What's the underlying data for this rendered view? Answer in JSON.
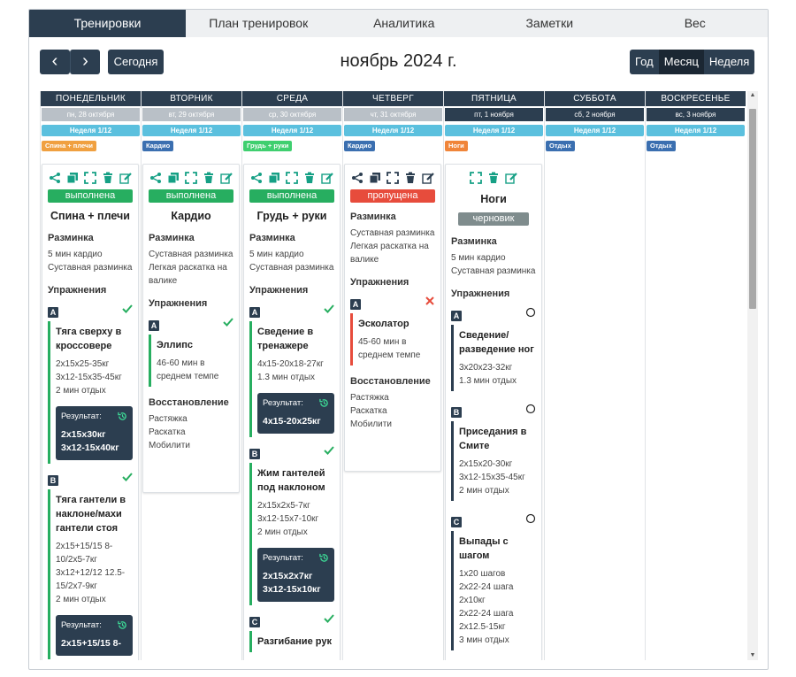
{
  "tabs": [
    "Тренировки",
    "План тренировок",
    "Аналитика",
    "Заметки",
    "Вес"
  ],
  "toolbar": {
    "prev": "‹",
    "next": "›",
    "today": "Сегодня",
    "title": "ноябрь 2024 г.",
    "views": [
      "Год",
      "Месяц",
      "Неделя"
    ],
    "selected_view": "Месяц"
  },
  "days": [
    {
      "name": "ПОНЕДЕЛЬНИК",
      "date": "пн, 28 октября",
      "week": "Неделя 1/12",
      "tag": "Спина + плечи",
      "tag_color": "#f0a040"
    },
    {
      "name": "ВТОРНИК",
      "date": "вт, 29 октября",
      "week": "Неделя 1/12",
      "tag": "Кардио",
      "tag_color": "#3b6fb0"
    },
    {
      "name": "СРЕДА",
      "date": "ср, 30 октября",
      "week": "Неделя 1/12",
      "tag": "Грудь + руки",
      "tag_color": "#3fcf6f"
    },
    {
      "name": "ЧЕТВЕРГ",
      "date": "чт, 31 октября",
      "week": "Неделя 1/12",
      "tag": "Кардио",
      "tag_color": "#3b6fb0"
    },
    {
      "name": "ПЯТНИЦА",
      "date": "пт, 1 ноября",
      "week": "Неделя 1/12",
      "tag": "Ноги",
      "tag_color": "#f0853a"
    },
    {
      "name": "СУББОТА",
      "date": "сб, 2 ноября",
      "week": "Неделя 1/12",
      "tag": "Отдых",
      "tag_color": "#3b6fb0"
    },
    {
      "name": "ВОСКРЕСЕНЬЕ",
      "date": "вс, 3 ноября",
      "week": "Неделя 1/12",
      "tag": "Отдых",
      "tag_color": "#3b6fb0"
    }
  ],
  "labels": {
    "warmup": "Разминка",
    "exercises": "Упражнения",
    "recovery": "Восстановление",
    "result": "Результат:"
  },
  "workouts": {
    "mon": {
      "status": "выполнена",
      "name": "Спина + плечи",
      "warmup": [
        "5 мин кардио",
        "Суставная разминка"
      ],
      "ex": [
        {
          "letter": "A",
          "name": "Тяга сверху в кроссовере",
          "details": [
            "2x15x25-35кг",
            "3x12-15x35-45кг",
            "2 мин отдых"
          ],
          "result": [
            "2x15x30кг",
            "3x12-15x40кг"
          ]
        },
        {
          "letter": "B",
          "name": "Тяга гантели в наклоне/махи гантели стоя",
          "details": [
            "2x15+15/15 8-10/2x5-7кг",
            "3x12+12/12 12.5-15/2x7-9кг",
            "2 мин отдых"
          ],
          "result": [
            "2x15+15/15 8-"
          ]
        }
      ]
    },
    "tue": {
      "status": "выполнена",
      "name": "Кардио",
      "warmup": [
        "Суставная разминка",
        "Легкая раскатка на валике"
      ],
      "ex": [
        {
          "letter": "A",
          "name": "Эллипс",
          "details": [
            "46-60 мин в среднем темпе"
          ]
        }
      ],
      "recovery": [
        "Растяжка",
        "Раскатка",
        "Мобилити"
      ]
    },
    "wed": {
      "status": "выполнена",
      "name": "Грудь + руки",
      "warmup": [
        "5 мин кардио",
        "Суставная разминка"
      ],
      "ex": [
        {
          "letter": "A",
          "name": "Сведение в тренажере",
          "details": [
            "4x15-20x18-27кг",
            "1.3 мин отдых"
          ],
          "result": [
            "4x15-20x25кг"
          ]
        },
        {
          "letter": "B",
          "name": "Жим гантелей под наклоном",
          "details": [
            "2x15x2x5-7кг",
            "3x12-15x7-10кг",
            "2 мин отдых"
          ],
          "result": [
            "2x15x2x7кг",
            "3x12-15x10кг"
          ]
        },
        {
          "letter": "C",
          "name": "Разгибание рук"
        }
      ]
    },
    "thu": {
      "status": "пропущена",
      "name": "",
      "warmup": [
        "Суставная разминка",
        "Легкая раскатка на валике"
      ],
      "ex": [
        {
          "letter": "A",
          "name": "Эсколатор",
          "details": [
            "45-60 мин в среднем темпе"
          ]
        }
      ],
      "recovery": [
        "Растяжка",
        "Раскатка",
        "Мобилити"
      ]
    },
    "fri": {
      "status": "черновик",
      "name": "Ноги",
      "warmup": [
        "5 мин кардио",
        "Суставная разминка"
      ],
      "ex": [
        {
          "letter": "A",
          "name": "Сведение/ разведение ног",
          "details": [
            "3x20x23-32кг",
            "1.3 мин отдых"
          ]
        },
        {
          "letter": "B",
          "name": "Приседания в Смите",
          "details": [
            "2x15x20-30кг",
            "3x12-15x35-45кг",
            "2 мин отдых"
          ]
        },
        {
          "letter": "C",
          "name": "Выпады с шагом",
          "details": [
            "1x20 шагов",
            "2x22-24 шага",
            "2x10кг",
            "2x22-24 шага",
            "2x12.5-15кг",
            "3 мин отдых"
          ]
        }
      ]
    }
  }
}
